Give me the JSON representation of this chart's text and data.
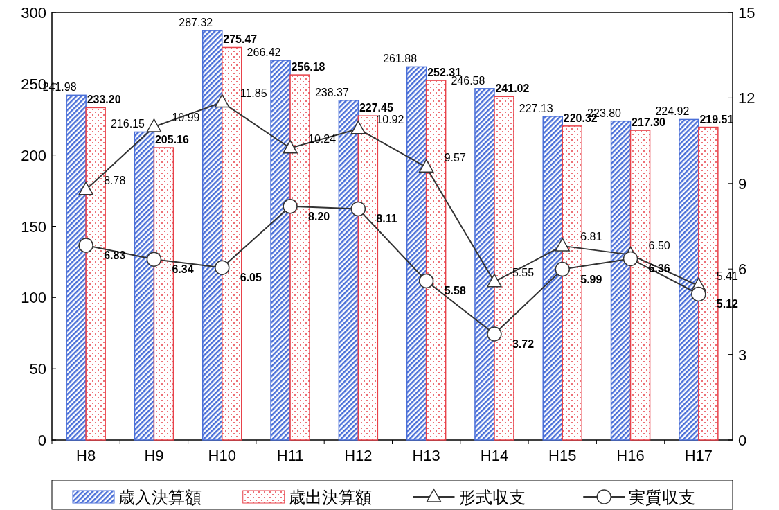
{
  "chart_data": {
    "type": "bar",
    "categories": [
      "H8",
      "H9",
      "H10",
      "H11",
      "H12",
      "H13",
      "H14",
      "H15",
      "H16",
      "H17"
    ],
    "series": [
      {
        "name": "歳入決算額",
        "color": "#4a6fd8",
        "values": [
          241.98,
          216.15,
          287.32,
          266.42,
          238.37,
          261.88,
          246.58,
          227.13,
          223.8,
          224.92
        ],
        "value_labels": [
          "241.98",
          "216.15",
          "287.32",
          "266.42",
          "238.37",
          "261.88",
          "246.58",
          "227.13",
          "223.80",
          "224.92"
        ]
      },
      {
        "name": "歳出決算額",
        "color": "#e8424a",
        "values": [
          233.2,
          205.16,
          275.47,
          256.18,
          227.45,
          252.31,
          241.02,
          220.32,
          217.3,
          219.51
        ],
        "value_labels": [
          "233.20",
          "205.16",
          "275.47",
          "256.18",
          "227.45",
          "252.31",
          "241.02",
          "220.32",
          "217.30",
          "219.51"
        ]
      },
      {
        "name": "形式収支",
        "type": "line",
        "axis": "y2",
        "marker": "triangle",
        "color": "#333333",
        "values": [
          8.78,
          10.99,
          11.85,
          10.24,
          10.92,
          9.57,
          5.55,
          6.81,
          6.5,
          5.41
        ],
        "value_labels": [
          "8.78",
          "10.99",
          "11.85",
          "10.24",
          "10.92",
          "9.57",
          "5.55",
          "6.81",
          "6.50",
          "5.41"
        ]
      },
      {
        "name": "実質収支",
        "type": "line",
        "axis": "y2",
        "marker": "circle",
        "color": "#333333",
        "values": [
          6.83,
          6.34,
          6.05,
          8.2,
          8.11,
          5.58,
          3.72,
          5.99,
          6.36,
          5.12
        ],
        "value_labels": [
          "6.83",
          "6.34",
          "6.05",
          "8.20",
          "8.11",
          "5.58",
          "3.72",
          "5.99",
          "6.36",
          "5.12"
        ]
      }
    ],
    "ylim": [
      0,
      300
    ],
    "yticks": [
      0,
      50,
      100,
      150,
      200,
      250,
      300
    ],
    "y2lim": [
      0,
      15
    ],
    "y2ticks": [
      0,
      3,
      6,
      9,
      12,
      15
    ],
    "grid": false,
    "legend": "bottom"
  }
}
